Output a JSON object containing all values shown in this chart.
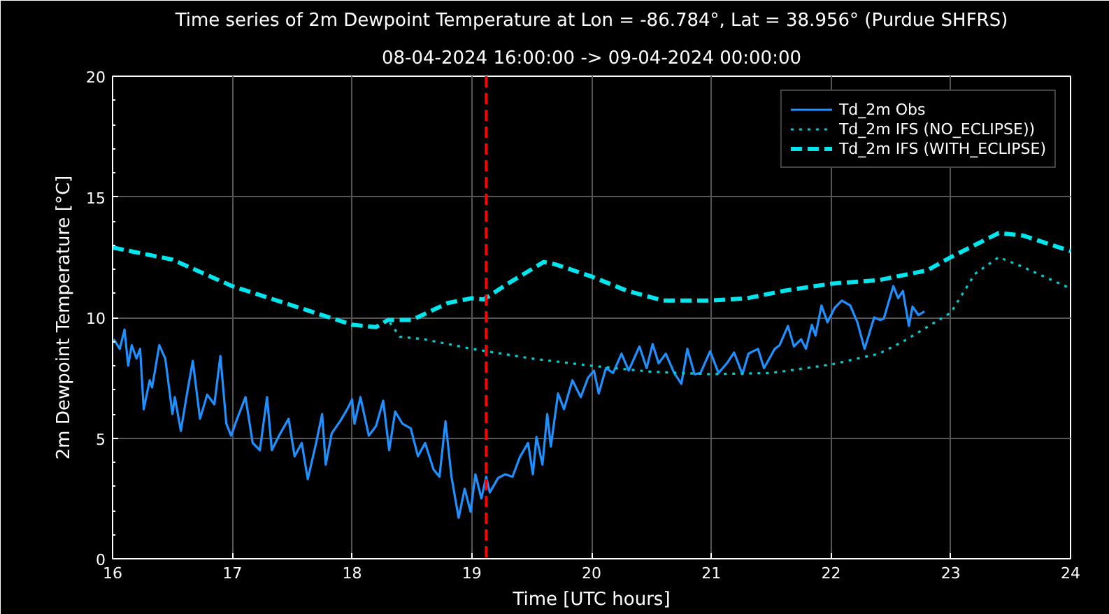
{
  "chart_data": {
    "type": "line",
    "title": "Time series of 2m Dewpoint Temperature at Lon = -86.784°, Lat = 38.956° (Purdue SHFRS)",
    "subtitle": "08-04-2024 16:00:00 -> 09-04-2024 00:00:00",
    "xlabel": "Time [UTC hours]",
    "ylabel": "2m Dewpoint Temperature [°C]",
    "xlim": [
      16,
      24
    ],
    "ylim": [
      0,
      20
    ],
    "xticks": [
      16,
      17,
      18,
      19,
      20,
      21,
      22,
      23,
      24
    ],
    "yticks": [
      0,
      5,
      10,
      15,
      20
    ],
    "grid": true,
    "legend": "top right",
    "series": [
      {
        "name": "Td_2m Obs",
        "color": "#1e90ff",
        "line_style": "solid",
        "x": [
          16.01,
          16.06,
          16.1,
          16.13,
          16.16,
          16.2,
          16.23,
          16.26,
          16.31,
          16.33,
          16.39,
          16.44,
          16.5,
          16.52,
          16.57,
          16.62,
          16.67,
          16.73,
          16.79,
          16.85,
          16.9,
          16.95,
          16.99,
          17.04,
          17.11,
          17.17,
          17.23,
          17.29,
          17.33,
          17.39,
          17.47,
          17.52,
          17.58,
          17.63,
          17.7,
          17.75,
          17.78,
          17.83,
          17.9,
          17.96,
          18.0,
          18.02,
          18.07,
          18.14,
          18.2,
          18.26,
          18.31,
          18.36,
          18.42,
          18.49,
          18.55,
          18.61,
          18.68,
          18.73,
          18.78,
          18.83,
          18.89,
          18.94,
          18.99,
          19.03,
          19.08,
          19.12,
          19.15,
          19.22,
          19.28,
          19.34,
          19.4,
          19.47,
          19.51,
          19.54,
          19.59,
          19.63,
          19.66,
          19.72,
          19.77,
          19.84,
          19.91,
          19.97,
          20.02,
          20.06,
          20.12,
          20.18,
          20.25,
          20.31,
          20.4,
          20.46,
          20.51,
          20.56,
          20.62,
          20.69,
          20.75,
          20.8,
          20.86,
          20.91,
          20.99,
          21.06,
          21.13,
          21.19,
          21.26,
          21.31,
          21.39,
          21.44,
          21.53,
          21.57,
          21.64,
          21.69,
          21.75,
          21.79,
          21.84,
          21.87,
          21.92,
          21.97,
          22.03,
          22.09,
          22.16,
          22.22,
          22.28,
          22.36,
          22.41,
          22.44,
          22.52,
          22.56,
          22.6,
          22.65,
          22.68,
          22.73,
          22.78
        ],
        "values": [
          9.1,
          8.7,
          9.5,
          8.0,
          8.85,
          8.3,
          8.7,
          6.2,
          7.4,
          7.1,
          8.85,
          8.3,
          6.0,
          6.7,
          5.3,
          6.8,
          8.2,
          5.8,
          6.8,
          6.4,
          8.4,
          5.6,
          5.1,
          5.8,
          6.7,
          4.8,
          4.5,
          6.7,
          4.5,
          5.1,
          5.8,
          4.25,
          4.8,
          3.3,
          4.8,
          6.0,
          3.9,
          5.2,
          5.7,
          6.2,
          6.6,
          5.6,
          6.7,
          5.1,
          5.5,
          6.55,
          4.5,
          6.1,
          5.6,
          5.4,
          4.25,
          4.8,
          3.7,
          3.4,
          5.7,
          3.4,
          1.7,
          2.9,
          1.95,
          3.5,
          2.5,
          3.4,
          2.75,
          3.35,
          3.5,
          3.4,
          4.2,
          4.8,
          3.5,
          5.05,
          3.9,
          6.0,
          4.65,
          6.85,
          6.2,
          7.4,
          6.7,
          7.5,
          7.8,
          6.85,
          7.9,
          7.7,
          8.5,
          7.8,
          8.8,
          7.9,
          8.9,
          8.1,
          8.5,
          7.7,
          7.25,
          8.7,
          7.65,
          7.7,
          8.6,
          7.7,
          8.1,
          8.55,
          7.65,
          8.5,
          8.7,
          7.9,
          8.7,
          8.85,
          9.65,
          8.8,
          9.1,
          8.7,
          9.7,
          9.25,
          10.5,
          9.8,
          10.4,
          10.7,
          10.5,
          9.8,
          8.7,
          10.0,
          9.9,
          9.95,
          11.3,
          10.8,
          11.1,
          9.65,
          10.45,
          10.1,
          10.25
        ]
      },
      {
        "name": "Td_2m IFS (NO_ECLIPSE))",
        "color": "#00ced1",
        "line_style": "dotted",
        "x": [
          16.0,
          16.5,
          17.0,
          17.5,
          18.0,
          18.2,
          18.3,
          18.4,
          18.6,
          19.0,
          19.5,
          20.0,
          20.5,
          21.0,
          21.5,
          22.0,
          22.4,
          22.6,
          22.8,
          23.0,
          23.2,
          23.4,
          23.6,
          24.0
        ],
        "values": [
          12.9,
          12.4,
          11.3,
          10.5,
          9.7,
          9.6,
          9.9,
          9.2,
          9.1,
          8.7,
          8.3,
          8.0,
          7.75,
          7.65,
          7.7,
          8.05,
          8.5,
          9.0,
          9.6,
          10.2,
          11.8,
          12.5,
          12.1,
          11.2
        ]
      },
      {
        "name": "Td_2m IFS (WITH_ECLIPSE)",
        "color": "#00e5ee",
        "line_style": "dashed",
        "x": [
          16.0,
          16.5,
          17.0,
          17.5,
          18.0,
          18.2,
          18.3,
          18.5,
          18.8,
          19.0,
          19.1,
          19.3,
          19.6,
          19.7,
          20.0,
          20.3,
          20.6,
          21.0,
          21.3,
          21.6,
          22.0,
          22.4,
          22.8,
          23.0,
          23.2,
          23.4,
          23.6,
          24.0
        ],
        "values": [
          12.9,
          12.4,
          11.3,
          10.5,
          9.7,
          9.6,
          9.9,
          9.9,
          10.6,
          10.8,
          10.75,
          11.4,
          12.3,
          12.2,
          11.7,
          11.1,
          10.7,
          10.7,
          10.8,
          11.1,
          11.4,
          11.55,
          11.95,
          12.5,
          13.0,
          13.5,
          13.4,
          12.75
        ]
      }
    ],
    "ref_lines": [
      {
        "axis": "x",
        "value": 19.12,
        "color": "#ff0000",
        "line_style": "dashed"
      }
    ]
  }
}
